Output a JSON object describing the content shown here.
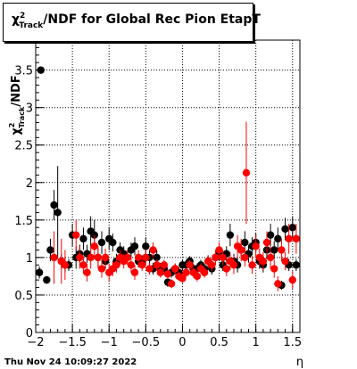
{
  "title": {
    "prefix": "χ",
    "sup": "2",
    "sub": "Track",
    "suffix": "/NDF for Global Rec Pion EtapT"
  },
  "timestamp": "Thu Nov 24 10:09:27 2022",
  "colors": {
    "series_black": "#000000",
    "series_red": "#ff0000",
    "grid": "#000000"
  },
  "chart_data": {
    "type": "scatter",
    "title": "χ²_Track/NDF for Global Rec Pion EtapT",
    "xlabel": "η",
    "ylabel": "χ²_Track/NDF",
    "xlim": [
      -2,
      1.6
    ],
    "ylim": [
      0,
      3.9
    ],
    "grid": true,
    "x_ticks": [
      "−2",
      "−1.5",
      "−1",
      "−0.5",
      "0",
      "0.5",
      "1",
      "1.5"
    ],
    "x_tick_values": [
      -2,
      -1.5,
      -1,
      -0.5,
      0,
      0.5,
      1,
      1.5
    ],
    "y_ticks": [
      "0",
      "0.5",
      "1",
      "1.5",
      "2",
      "2.5",
      "3",
      "3.5"
    ],
    "y_tick_values": [
      0,
      0.5,
      1,
      1.5,
      2,
      2.5,
      3,
      3.5
    ],
    "series": [
      {
        "color": "#000000",
        "points": [
          {
            "x": -1.95,
            "y": 0.8,
            "e": 0.08
          },
          {
            "x": -1.93,
            "y": 3.5,
            "e": 0.0
          },
          {
            "x": -1.85,
            "y": 0.7,
            "e": 0.05
          },
          {
            "x": -1.8,
            "y": 1.1,
            "e": 0.15
          },
          {
            "x": -1.75,
            "y": 1.7,
            "e": 0.2
          },
          {
            "x": -1.7,
            "y": 1.6,
            "e": 0.62
          },
          {
            "x": -1.65,
            "y": 0.95,
            "e": 0.1
          },
          {
            "x": -1.6,
            "y": 0.9,
            "e": 0.1
          },
          {
            "x": -1.55,
            "y": 0.9,
            "e": 0.08
          },
          {
            "x": -1.5,
            "y": 1.3,
            "e": 0.15
          },
          {
            "x": -1.45,
            "y": 1.0,
            "e": 0.15
          },
          {
            "x": -1.4,
            "y": 1.05,
            "e": 0.12
          },
          {
            "x": -1.35,
            "y": 1.25,
            "e": 0.15
          },
          {
            "x": -1.3,
            "y": 1.05,
            "e": 0.12
          },
          {
            "x": -1.25,
            "y": 1.35,
            "e": 0.2
          },
          {
            "x": -1.2,
            "y": 1.3,
            "e": 0.2
          },
          {
            "x": -1.15,
            "y": 1.0,
            "e": 0.12
          },
          {
            "x": -1.1,
            "y": 1.2,
            "e": 0.15
          },
          {
            "x": -1.05,
            "y": 0.95,
            "e": 0.1
          },
          {
            "x": -1.0,
            "y": 1.25,
            "e": 0.15
          },
          {
            "x": -0.95,
            "y": 1.2,
            "e": 0.12
          },
          {
            "x": -0.9,
            "y": 0.95,
            "e": 0.1
          },
          {
            "x": -0.85,
            "y": 1.1,
            "e": 0.1
          },
          {
            "x": -0.8,
            "y": 1.05,
            "e": 0.1
          },
          {
            "x": -0.75,
            "y": 1.0,
            "e": 0.08
          },
          {
            "x": -0.7,
            "y": 1.1,
            "e": 0.1
          },
          {
            "x": -0.65,
            "y": 1.15,
            "e": 0.12
          },
          {
            "x": -0.6,
            "y": 0.95,
            "e": 0.08
          },
          {
            "x": -0.55,
            "y": 0.95,
            "e": 0.08
          },
          {
            "x": -0.5,
            "y": 1.15,
            "e": 0.12
          },
          {
            "x": -0.45,
            "y": 1.0,
            "e": 0.1
          },
          {
            "x": -0.4,
            "y": 0.85,
            "e": 0.08
          },
          {
            "x": -0.35,
            "y": 1.0,
            "e": 0.1
          },
          {
            "x": -0.3,
            "y": 0.85,
            "e": 0.08
          },
          {
            "x": -0.25,
            "y": 0.85,
            "e": 0.08
          },
          {
            "x": -0.2,
            "y": 0.67,
            "e": 0.06
          },
          {
            "x": -0.15,
            "y": 0.8,
            "e": 0.07
          },
          {
            "x": -0.1,
            "y": 0.85,
            "e": 0.07
          },
          {
            "x": -0.05,
            "y": 0.8,
            "e": 0.07
          },
          {
            "x": 0.0,
            "y": 0.9,
            "e": 0.07
          },
          {
            "x": 0.05,
            "y": 0.9,
            "e": 0.07
          },
          {
            "x": 0.1,
            "y": 0.95,
            "e": 0.07
          },
          {
            "x": 0.15,
            "y": 0.85,
            "e": 0.07
          },
          {
            "x": 0.2,
            "y": 0.85,
            "e": 0.07
          },
          {
            "x": 0.25,
            "y": 0.9,
            "e": 0.07
          },
          {
            "x": 0.3,
            "y": 0.85,
            "e": 0.07
          },
          {
            "x": 0.35,
            "y": 0.95,
            "e": 0.08
          },
          {
            "x": 0.4,
            "y": 0.85,
            "e": 0.08
          },
          {
            "x": 0.45,
            "y": 1.0,
            "e": 0.1
          },
          {
            "x": 0.5,
            "y": 1.05,
            "e": 0.1
          },
          {
            "x": 0.55,
            "y": 0.9,
            "e": 0.08
          },
          {
            "x": 0.6,
            "y": 1.05,
            "e": 0.1
          },
          {
            "x": 0.65,
            "y": 1.3,
            "e": 0.15
          },
          {
            "x": 0.7,
            "y": 0.95,
            "e": 0.1
          },
          {
            "x": 0.75,
            "y": 0.9,
            "e": 0.1
          },
          {
            "x": 0.8,
            "y": 1.1,
            "e": 0.12
          },
          {
            "x": 0.85,
            "y": 1.2,
            "e": 0.15
          },
          {
            "x": 0.9,
            "y": 1.05,
            "e": 0.12
          },
          {
            "x": 0.95,
            "y": 1.15,
            "e": 0.12
          },
          {
            "x": 1.0,
            "y": 1.2,
            "e": 0.12
          },
          {
            "x": 1.05,
            "y": 0.95,
            "e": 0.1
          },
          {
            "x": 1.1,
            "y": 0.9,
            "e": 0.1
          },
          {
            "x": 1.15,
            "y": 1.1,
            "e": 0.12
          },
          {
            "x": 1.2,
            "y": 1.3,
            "e": 0.15
          },
          {
            "x": 1.25,
            "y": 1.1,
            "e": 0.12
          },
          {
            "x": 1.3,
            "y": 1.25,
            "e": 0.15
          },
          {
            "x": 1.35,
            "y": 0.63,
            "e": 0.06
          },
          {
            "x": 1.4,
            "y": 1.38,
            "e": 0.15
          },
          {
            "x": 1.45,
            "y": 0.9,
            "e": 0.08
          },
          {
            "x": 1.5,
            "y": 1.4,
            "e": 0.15
          },
          {
            "x": 1.55,
            "y": 0.9,
            "e": 0.08
          }
        ]
      },
      {
        "color": "#ff0000",
        "points": [
          {
            "x": -1.75,
            "y": 1.0,
            "e": 0.35
          },
          {
            "x": -1.65,
            "y": 0.95,
            "e": 0.3
          },
          {
            "x": -1.6,
            "y": 0.9,
            "e": 0.2
          },
          {
            "x": -1.45,
            "y": 1.3,
            "e": 0.2
          },
          {
            "x": -1.4,
            "y": 1.0,
            "e": 0.15
          },
          {
            "x": -1.35,
            "y": 0.9,
            "e": 0.12
          },
          {
            "x": -1.3,
            "y": 0.8,
            "e": 0.12
          },
          {
            "x": -1.25,
            "y": 1.0,
            "e": 0.15
          },
          {
            "x": -1.2,
            "y": 1.15,
            "e": 0.15
          },
          {
            "x": -1.15,
            "y": 1.0,
            "e": 0.15
          },
          {
            "x": -1.1,
            "y": 0.85,
            "e": 0.12
          },
          {
            "x": -1.05,
            "y": 1.0,
            "e": 0.12
          },
          {
            "x": -1.0,
            "y": 0.8,
            "e": 0.12
          },
          {
            "x": -0.95,
            "y": 0.85,
            "e": 0.1
          },
          {
            "x": -0.9,
            "y": 0.9,
            "e": 0.1
          },
          {
            "x": -0.85,
            "y": 1.0,
            "e": 0.1
          },
          {
            "x": -0.8,
            "y": 0.95,
            "e": 0.1
          },
          {
            "x": -0.75,
            "y": 1.0,
            "e": 0.1
          },
          {
            "x": -0.7,
            "y": 0.9,
            "e": 0.1
          },
          {
            "x": -0.65,
            "y": 0.8,
            "e": 0.1
          },
          {
            "x": -0.6,
            "y": 1.0,
            "e": 0.1
          },
          {
            "x": -0.55,
            "y": 0.9,
            "e": 0.08
          },
          {
            "x": -0.5,
            "y": 1.0,
            "e": 0.1
          },
          {
            "x": -0.45,
            "y": 0.85,
            "e": 0.08
          },
          {
            "x": -0.4,
            "y": 1.1,
            "e": 0.1
          },
          {
            "x": -0.35,
            "y": 0.9,
            "e": 0.08
          },
          {
            "x": -0.3,
            "y": 0.8,
            "e": 0.07
          },
          {
            "x": -0.25,
            "y": 0.9,
            "e": 0.07
          },
          {
            "x": -0.2,
            "y": 0.78,
            "e": 0.07
          },
          {
            "x": -0.15,
            "y": 0.65,
            "e": 0.06
          },
          {
            "x": -0.1,
            "y": 0.85,
            "e": 0.07
          },
          {
            "x": -0.05,
            "y": 0.75,
            "e": 0.06
          },
          {
            "x": 0.0,
            "y": 0.72,
            "e": 0.06
          },
          {
            "x": 0.05,
            "y": 0.8,
            "e": 0.06
          },
          {
            "x": 0.1,
            "y": 0.9,
            "e": 0.07
          },
          {
            "x": 0.15,
            "y": 0.8,
            "e": 0.07
          },
          {
            "x": 0.2,
            "y": 0.75,
            "e": 0.07
          },
          {
            "x": 0.25,
            "y": 0.85,
            "e": 0.07
          },
          {
            "x": 0.3,
            "y": 0.8,
            "e": 0.07
          },
          {
            "x": 0.35,
            "y": 0.95,
            "e": 0.08
          },
          {
            "x": 0.4,
            "y": 0.9,
            "e": 0.08
          },
          {
            "x": 0.45,
            "y": 1.0,
            "e": 0.1
          },
          {
            "x": 0.5,
            "y": 1.1,
            "e": 0.1
          },
          {
            "x": 0.55,
            "y": 1.0,
            "e": 0.1
          },
          {
            "x": 0.6,
            "y": 0.85,
            "e": 0.1
          },
          {
            "x": 0.65,
            "y": 0.95,
            "e": 0.12
          },
          {
            "x": 0.7,
            "y": 0.9,
            "e": 0.12
          },
          {
            "x": 0.75,
            "y": 1.15,
            "e": 0.15
          },
          {
            "x": 0.8,
            "y": 1.1,
            "e": 0.15
          },
          {
            "x": 0.85,
            "y": 1.0,
            "e": 0.12
          },
          {
            "x": 0.87,
            "y": 2.13,
            "e": 0.68
          },
          {
            "x": 0.95,
            "y": 0.9,
            "e": 0.12
          },
          {
            "x": 1.0,
            "y": 1.15,
            "e": 0.15
          },
          {
            "x": 1.05,
            "y": 1.0,
            "e": 0.12
          },
          {
            "x": 1.1,
            "y": 0.95,
            "e": 0.12
          },
          {
            "x": 1.15,
            "y": 1.2,
            "e": 0.15
          },
          {
            "x": 1.2,
            "y": 1.0,
            "e": 0.15
          },
          {
            "x": 1.25,
            "y": 0.85,
            "e": 0.12
          },
          {
            "x": 1.3,
            "y": 0.65,
            "e": 0.1
          },
          {
            "x": 1.35,
            "y": 1.1,
            "e": 0.15
          },
          {
            "x": 1.4,
            "y": 0.95,
            "e": 0.12
          },
          {
            "x": 1.45,
            "y": 1.25,
            "e": 0.2
          },
          {
            "x": 1.5,
            "y": 0.7,
            "e": 0.12
          },
          {
            "x": 1.55,
            "y": 1.25,
            "e": 0.2
          }
        ]
      }
    ]
  }
}
